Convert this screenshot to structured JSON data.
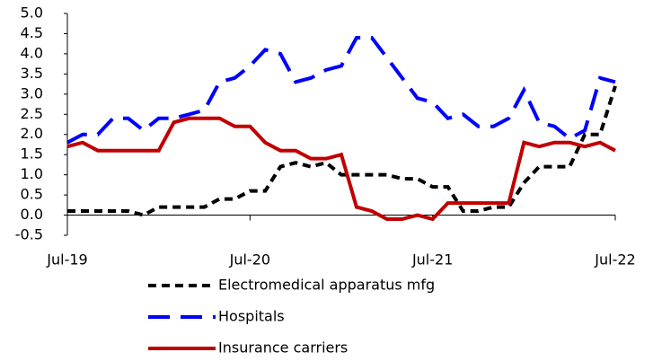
{
  "chart_data": {
    "type": "line",
    "categories": [
      "Jul-19",
      null,
      null,
      null,
      null,
      null,
      null,
      null,
      null,
      null,
      null,
      null,
      "Jul-20",
      null,
      null,
      null,
      null,
      null,
      null,
      null,
      null,
      null,
      null,
      null,
      "Jul-21",
      null,
      null,
      null,
      null,
      null,
      null,
      null,
      null,
      null,
      null,
      null,
      "Jul-22"
    ],
    "series": [
      {
        "name": "Electromedical apparatus mfg",
        "color": "#000000",
        "line_style": "dashed",
        "values": [
          0.1,
          0.1,
          0.1,
          0.1,
          0.1,
          0.0,
          0.2,
          0.2,
          0.2,
          0.2,
          0.4,
          0.4,
          0.6,
          0.6,
          1.2,
          1.3,
          1.2,
          1.3,
          1.0,
          1.0,
          1.0,
          1.0,
          0.9,
          0.9,
          0.7,
          0.7,
          0.1,
          0.1,
          0.2,
          0.2,
          0.8,
          1.2,
          1.2,
          1.2,
          2.0,
          2.0,
          3.2
        ]
      },
      {
        "name": "Hospitals",
        "color": "#0000ff",
        "line_style": "long-dashed",
        "values": [
          1.8,
          2.0,
          2.0,
          2.4,
          2.4,
          2.1,
          2.4,
          2.4,
          2.5,
          2.6,
          3.3,
          3.4,
          3.7,
          4.1,
          4.0,
          3.3,
          3.4,
          3.6,
          3.7,
          4.4,
          4.4,
          3.9,
          3.4,
          2.9,
          2.8,
          2.4,
          2.5,
          2.2,
          2.2,
          2.4,
          3.1,
          2.3,
          2.2,
          1.9,
          2.1,
          3.4,
          3.3
        ]
      },
      {
        "name": "Insurance carriers",
        "color": "#c00000",
        "line_style": "solid",
        "values": [
          1.7,
          1.8,
          1.6,
          1.6,
          1.6,
          1.6,
          1.6,
          2.3,
          2.4,
          2.4,
          2.4,
          2.2,
          2.2,
          1.8,
          1.6,
          1.6,
          1.4,
          1.4,
          1.5,
          0.2,
          0.1,
          -0.1,
          -0.1,
          0.0,
          -0.1,
          0.3,
          0.3,
          0.3,
          0.3,
          0.3,
          1.8,
          1.7,
          1.8,
          1.8,
          1.7,
          1.8,
          1.6
        ]
      }
    ],
    "ylim": [
      -0.5,
      5.0
    ],
    "yticks": [
      {
        "value": -0.5,
        "label": "-0.5"
      },
      {
        "value": 0,
        "label": "0.0"
      },
      {
        "value": 0.5,
        "label": "0.5"
      },
      {
        "value": 1,
        "label": "1.0"
      },
      {
        "value": 1.5,
        "label": "1.5"
      },
      {
        "value": 2,
        "label": "2.0"
      },
      {
        "value": 2.5,
        "label": "2.5"
      },
      {
        "value": 3,
        "label": "3.0"
      },
      {
        "value": 3.5,
        "label": "3.5"
      },
      {
        "value": 4,
        "label": "4.0"
      },
      {
        "value": 4.5,
        "label": "4.5"
      },
      {
        "value": 5,
        "label": "5.0"
      }
    ],
    "grid": false
  }
}
